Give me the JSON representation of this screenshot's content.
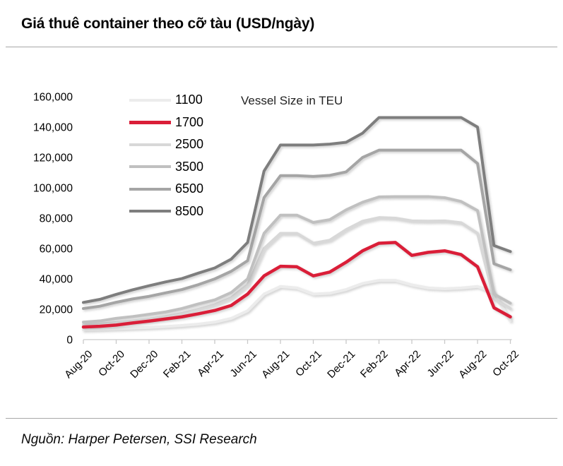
{
  "page": {
    "title": "Giá thuê container theo cỡ tàu (USD/ngày)",
    "source": "Nguồn: Harper Petersen, SSI Research"
  },
  "chart_data": {
    "type": "line",
    "title": "Giá thuê container theo cỡ tàu (USD/ngày)",
    "annotation": "Vessel Size in TEU",
    "x": [
      "Aug-20",
      "Sep-20",
      "Oct-20",
      "Nov-20",
      "Dec-20",
      "Jan-21",
      "Feb-21",
      "Mar-21",
      "Apr-21",
      "May-21",
      "Jun-21",
      "Jul-21",
      "Aug-21",
      "Sep-21",
      "Oct-21",
      "Nov-21",
      "Dec-21",
      "Jan-22",
      "Feb-22",
      "Mar-22",
      "Apr-22",
      "May-22",
      "Jun-22",
      "Jul-22",
      "Aug-22",
      "Sep-22",
      "Oct-22"
    ],
    "x_tick_labels": [
      "Aug-20",
      "Oct-20",
      "Dec-20",
      "Feb-21",
      "Apr-21",
      "Jun-21",
      "Aug-21",
      "Oct-21",
      "Dec-21",
      "Feb-22",
      "Apr-22",
      "Jun-22",
      "Aug-22",
      "Oct-22"
    ],
    "y_ticks": [
      0,
      20000,
      40000,
      60000,
      80000,
      100000,
      120000,
      140000,
      160000
    ],
    "ylim": [
      0,
      160000
    ],
    "grid": false,
    "legend_position": "top-left-inside",
    "series": [
      {
        "name": "1100",
        "color": "#ECECEC",
        "values": [
          6500,
          6800,
          7200,
          7600,
          8000,
          8600,
          9300,
          10200,
          11500,
          14000,
          19000,
          30000,
          35000,
          34000,
          30000,
          30500,
          33000,
          37000,
          39000,
          39000,
          36000,
          34000,
          33500,
          34000,
          35000,
          31000,
          12500
        ]
      },
      {
        "name": "1700",
        "color": "#DA1E38",
        "values": [
          8300,
          8800,
          9600,
          11000,
          12200,
          13600,
          15000,
          17000,
          19200,
          22500,
          30000,
          42000,
          48300,
          48000,
          42000,
          44500,
          51000,
          58500,
          63500,
          64000,
          55500,
          57500,
          58500,
          56000,
          48000,
          21000,
          15000
        ]
      },
      {
        "name": "2500",
        "color": "#D8D8D8",
        "values": [
          9800,
          10300,
          11200,
          12200,
          13500,
          15200,
          17200,
          20000,
          23000,
          27500,
          36000,
          60000,
          70000,
          70000,
          63500,
          65500,
          72500,
          78000,
          80400,
          80000,
          78200,
          78000,
          78200,
          77000,
          70000,
          27000,
          20500
        ]
      },
      {
        "name": "3500",
        "color": "#C0C0C0",
        "values": [
          11500,
          12300,
          14000,
          15200,
          16700,
          18200,
          20500,
          23500,
          26200,
          31000,
          40000,
          70000,
          82000,
          82000,
          77200,
          79000,
          85500,
          90500,
          94000,
          94200,
          94200,
          94200,
          93500,
          91000,
          85000,
          30000,
          24000
        ]
      },
      {
        "name": "6500",
        "color": "#A5A5A5",
        "values": [
          20500,
          22000,
          24600,
          26800,
          28500,
          30800,
          33000,
          36200,
          40000,
          45000,
          52000,
          93500,
          108000,
          108000,
          107500,
          108200,
          110500,
          120000,
          124800,
          124800,
          124800,
          124800,
          124800,
          124800,
          116000,
          50000,
          46000
        ]
      },
      {
        "name": "8500",
        "color": "#7E7E7E",
        "values": [
          24500,
          26500,
          29800,
          32800,
          35500,
          38000,
          40200,
          43800,
          47200,
          53000,
          64000,
          111000,
          128200,
          128200,
          128200,
          128800,
          130000,
          136000,
          146300,
          146300,
          146300,
          146300,
          146300,
          146300,
          140000,
          62000,
          58000
        ]
      }
    ]
  }
}
